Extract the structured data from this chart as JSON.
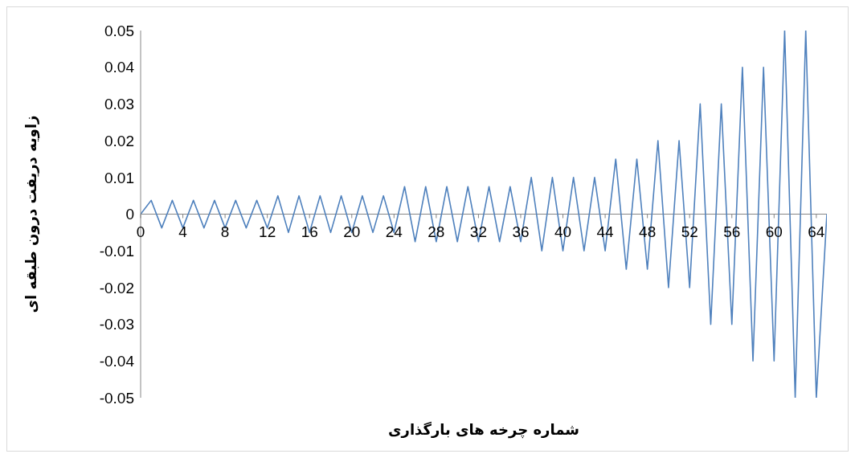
{
  "chart_data": {
    "type": "line",
    "xlabel": "شماره چرخه های بارگذاری",
    "ylabel": "زاویه دریفت درون طبقه ای",
    "color": "#4f81bd",
    "x": [
      0,
      1,
      2,
      3,
      4,
      5,
      6,
      7,
      8,
      9,
      10,
      11,
      12,
      13,
      14,
      15,
      16,
      17,
      18,
      19,
      20,
      21,
      22,
      23,
      24,
      25,
      26,
      27,
      28,
      29,
      30,
      31,
      32,
      33,
      34,
      35,
      36,
      37,
      38,
      39,
      40,
      41,
      42,
      43,
      44,
      45,
      46,
      47,
      48,
      49,
      50,
      51,
      52,
      53,
      54,
      55,
      56,
      57,
      58,
      59,
      60,
      61,
      62,
      63,
      64,
      65
    ],
    "values": [
      0,
      0.00375,
      -0.00375,
      0.00375,
      -0.00375,
      0.00375,
      -0.00375,
      0.00375,
      -0.00375,
      0.00375,
      -0.00375,
      0.00375,
      -0.00375,
      0.005,
      -0.005,
      0.005,
      -0.005,
      0.005,
      -0.005,
      0.005,
      -0.005,
      0.005,
      -0.005,
      0.005,
      -0.005,
      0.0075,
      -0.0075,
      0.0075,
      -0.0075,
      0.0075,
      -0.0075,
      0.0075,
      -0.0075,
      0.0075,
      -0.0075,
      0.0075,
      -0.0075,
      0.01,
      -0.01,
      0.01,
      -0.01,
      0.01,
      -0.01,
      0.01,
      -0.01,
      0.015,
      -0.015,
      0.015,
      -0.015,
      0.02,
      -0.02,
      0.02,
      -0.02,
      0.03,
      -0.03,
      0.03,
      -0.03,
      0.04,
      -0.04,
      0.04,
      -0.04,
      0.05,
      -0.05,
      0.05,
      -0.05,
      0
    ],
    "xlim": [
      0,
      65
    ],
    "xticks": [
      0,
      4,
      8,
      12,
      16,
      20,
      24,
      28,
      32,
      36,
      40,
      44,
      48,
      52,
      56,
      60,
      64
    ],
    "ylim": [
      -0.05,
      0.05
    ],
    "yticks": [
      -0.05,
      -0.04,
      -0.03,
      -0.02,
      -0.01,
      0,
      0.01,
      0.02,
      0.03,
      0.04,
      0.05
    ]
  }
}
